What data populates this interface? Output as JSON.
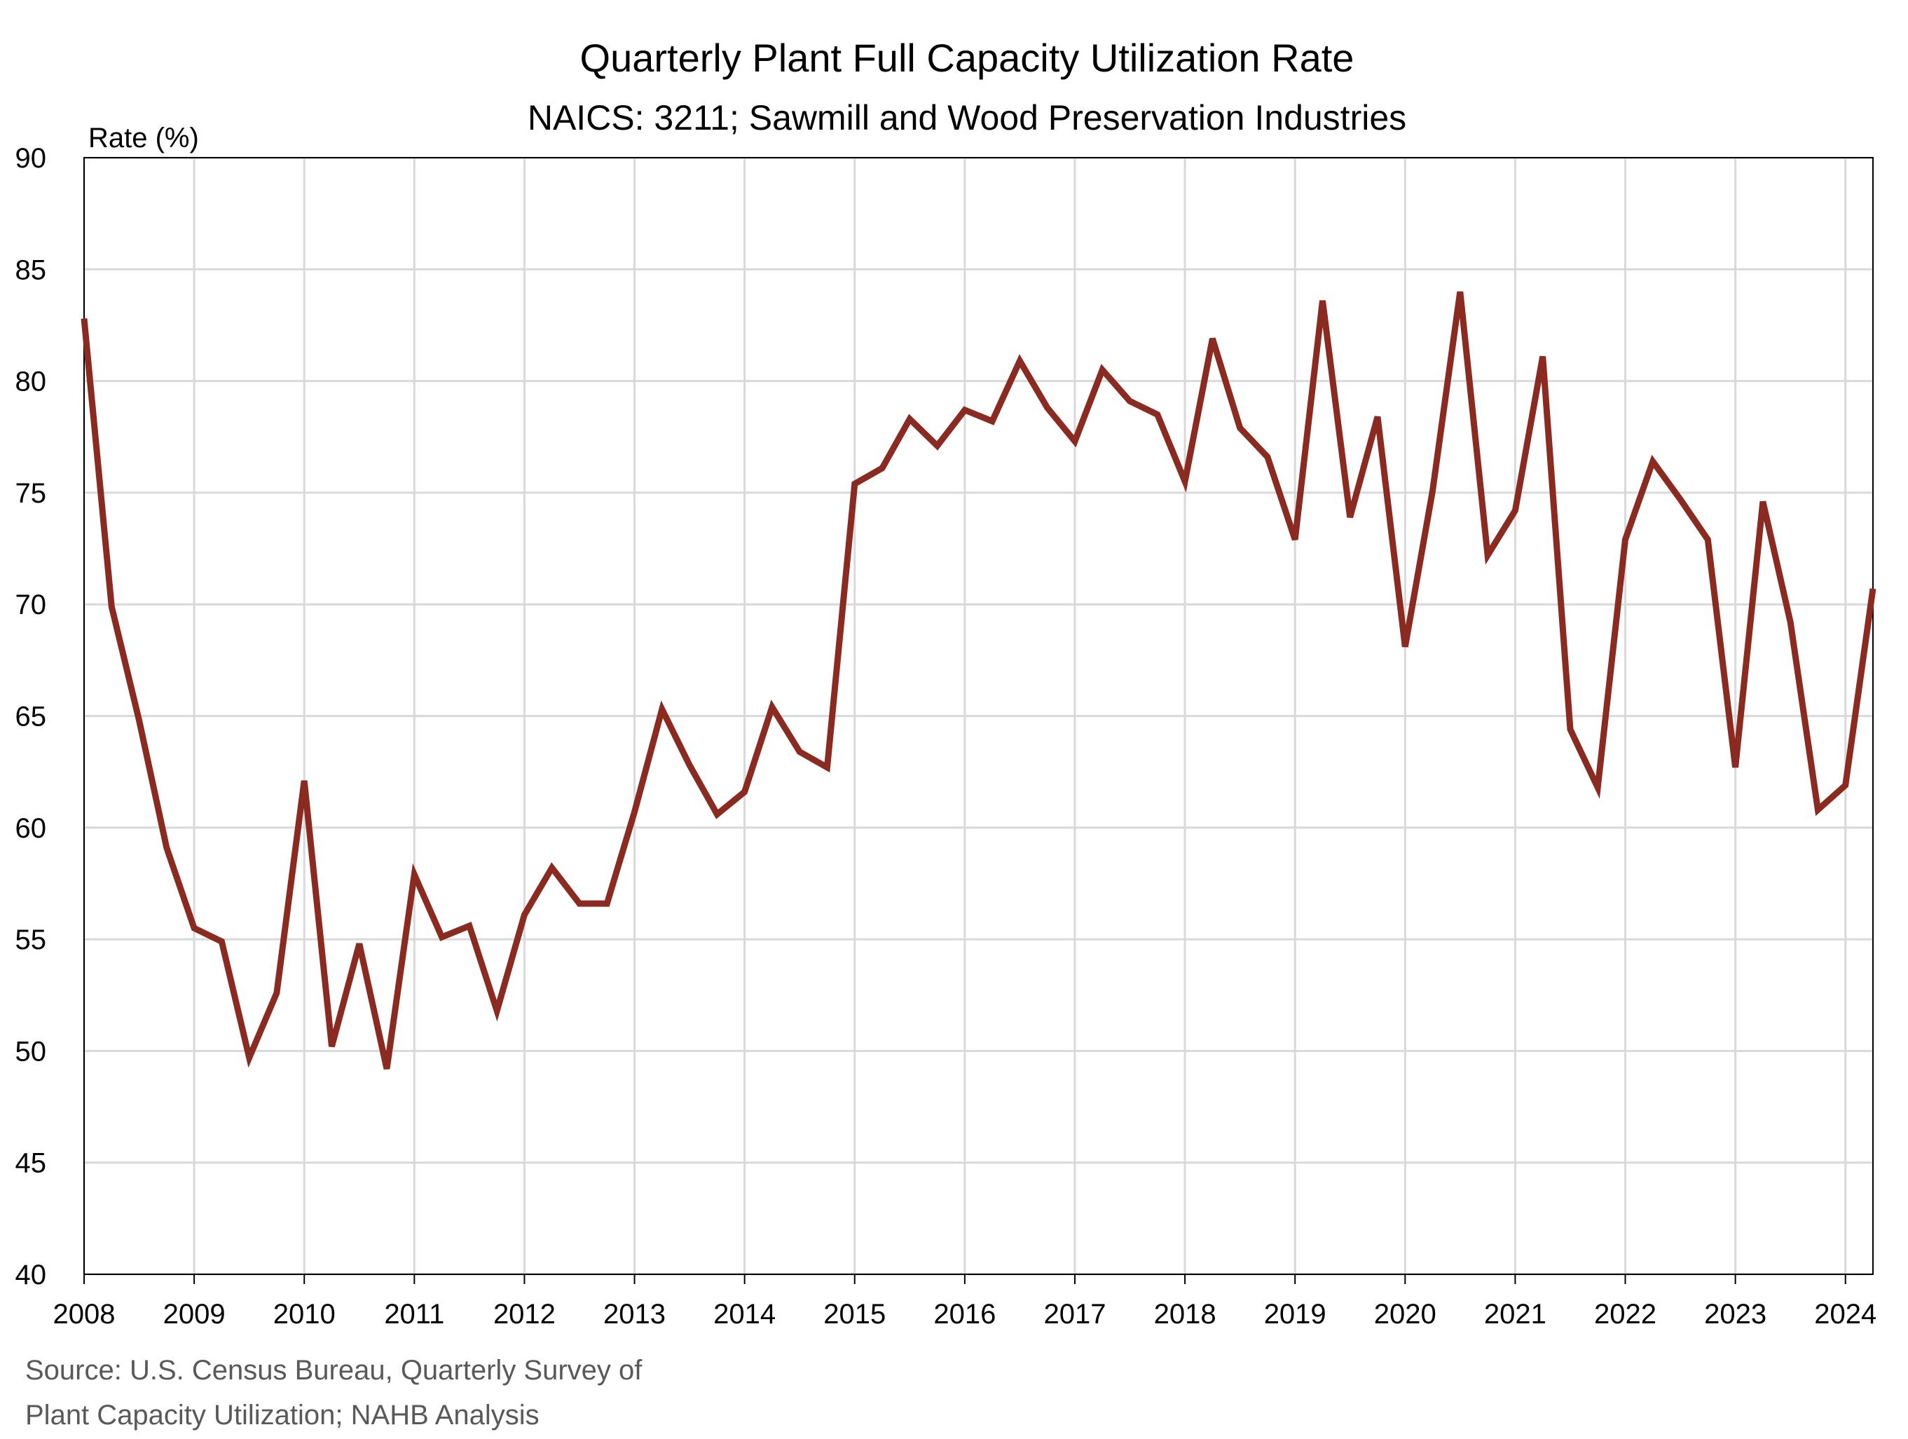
{
  "chart_data": {
    "type": "line",
    "title": "Quarterly Plant Full Capacity Utilization Rate",
    "subtitle": "NAICS: 3211; Sawmill and Wood Preservation Industries",
    "ylabel": "Rate (%)",
    "xlabel": "",
    "ylim": [
      40,
      90
    ],
    "yticks": [
      "40",
      "45",
      "50",
      "55",
      "60",
      "65",
      "70",
      "75",
      "80",
      "85",
      "90"
    ],
    "xticks": [
      "2008",
      "2009",
      "2010",
      "2011",
      "2012",
      "2013",
      "2014",
      "2015",
      "2016",
      "2017",
      "2018",
      "2019",
      "2020",
      "2021",
      "2022",
      "2023",
      "2024"
    ],
    "grid": true,
    "legend": "none",
    "source_lines": [
      "Source: U.S. Census Bureau, Quarterly Survey of",
      "Plant Capacity Utilization; NAHB Analysis"
    ],
    "series": [
      {
        "color": "#8B2A20",
        "x": [
          "2008 Q1",
          "2008 Q2",
          "2008 Q3",
          "2008 Q4",
          "2009 Q1",
          "2009 Q2",
          "2009 Q3",
          "2009 Q4",
          "2010 Q1",
          "2010 Q2",
          "2010 Q3",
          "2010 Q4",
          "2011 Q1",
          "2011 Q2",
          "2011 Q3",
          "2011 Q4",
          "2012 Q1",
          "2012 Q2",
          "2012 Q3",
          "2012 Q4",
          "2013 Q1",
          "2013 Q2",
          "2013 Q3",
          "2013 Q4",
          "2014 Q1",
          "2014 Q2",
          "2014 Q3",
          "2014 Q4",
          "2015 Q1",
          "2015 Q2",
          "2015 Q3",
          "2015 Q4",
          "2016 Q1",
          "2016 Q2",
          "2016 Q3",
          "2016 Q4",
          "2017 Q1",
          "2017 Q2",
          "2017 Q3",
          "2017 Q4",
          "2018 Q1",
          "2018 Q2",
          "2018 Q3",
          "2018 Q4",
          "2019 Q1",
          "2019 Q2",
          "2019 Q3",
          "2019 Q4",
          "2020 Q1",
          "2020 Q2",
          "2020 Q3",
          "2020 Q4",
          "2021 Q1",
          "2021 Q2",
          "2021 Q3",
          "2021 Q4",
          "2022 Q1",
          "2022 Q2",
          "2022 Q3",
          "2022 Q4",
          "2023 Q1",
          "2023 Q2",
          "2023 Q3",
          "2023 Q4",
          "2024 Q1",
          "2024 Q2"
        ],
        "values": [
          82.8,
          69.9,
          64.8,
          59.1,
          55.5,
          54.9,
          49.7,
          52.6,
          62.1,
          50.2,
          54.8,
          49.2,
          57.9,
          55.1,
          55.6,
          51.8,
          56.1,
          58.2,
          56.6,
          56.6,
          60.7,
          65.3,
          62.8,
          60.6,
          61.6,
          65.4,
          63.4,
          62.7,
          75.4,
          76.1,
          78.3,
          77.1,
          78.7,
          78.2,
          80.9,
          78.8,
          77.3,
          80.5,
          79.1,
          78.5,
          75.5,
          81.9,
          77.9,
          76.6,
          72.9,
          83.6,
          73.9,
          78.4,
          68.1,
          75.1,
          84.0,
          72.2,
          74.2,
          81.1,
          64.4,
          61.8,
          72.9,
          76.4,
          74.7,
          72.9,
          62.7,
          74.6,
          69.2,
          60.8,
          61.9,
          70.7
        ]
      }
    ]
  }
}
